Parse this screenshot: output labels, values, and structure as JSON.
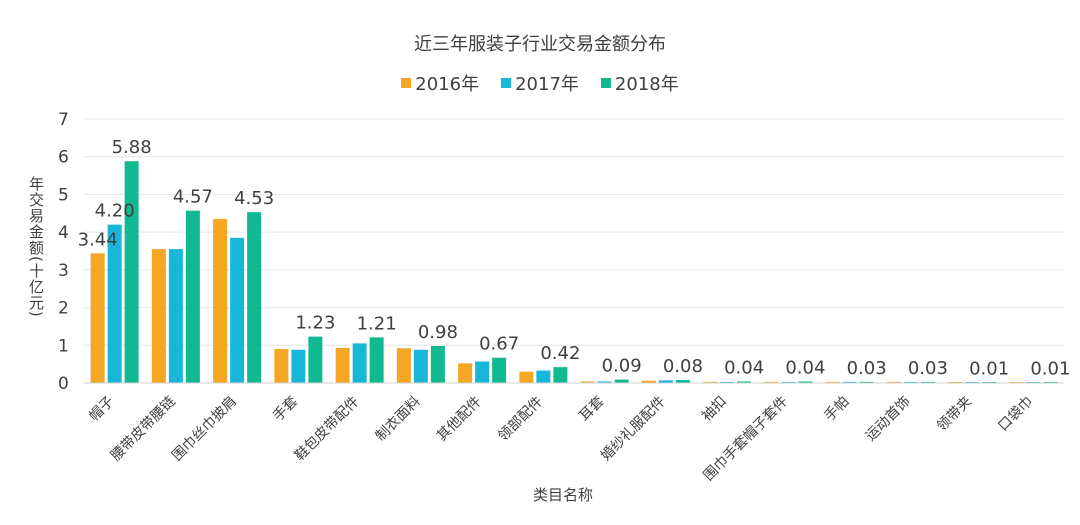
{
  "colors": {
    "series_2016": "#F5A623",
    "series_2017": "#18B7DA",
    "series_2018": "#10B98F",
    "grid": "#e6e6e6",
    "text": "#404040"
  },
  "chart_data": {
    "type": "bar",
    "title": "近三年服装子行业交易金额分布",
    "xlabel": "类目名称",
    "ylabel": "年交易金额(十亿元)",
    "ylim": [
      0,
      7
    ],
    "yticks": [
      "0",
      "1",
      "2",
      "3",
      "4",
      "5",
      "6",
      "7"
    ],
    "grid": true,
    "legend_position": "top",
    "categories": [
      "帽子",
      "腰带皮带腰链",
      "围巾丝巾披肩",
      "手套",
      "鞋包皮带配件",
      "制衣面料",
      "其他配件",
      "领部配件",
      "耳套",
      "婚纱礼服配件",
      "袖扣",
      "围巾手套帽子套件",
      "手帕",
      "运动首饰",
      "领带夹",
      "口袋巾"
    ],
    "series": [
      {
        "name": "2016年",
        "values": [
          3.44,
          3.55,
          4.35,
          0.9,
          0.93,
          0.92,
          0.52,
          0.3,
          0.04,
          0.06,
          0.03,
          0.03,
          0.03,
          0.03,
          0.005,
          0.005
        ]
      },
      {
        "name": "2017年",
        "values": [
          4.2,
          3.55,
          3.85,
          0.88,
          1.05,
          0.88,
          0.57,
          0.33,
          0.04,
          0.07,
          0.02,
          0.02,
          0.03,
          0.02,
          0.005,
          0.005
        ]
      },
      {
        "name": "2018年",
        "values": [
          5.88,
          4.57,
          4.53,
          1.23,
          1.21,
          0.98,
          0.67,
          0.42,
          0.09,
          0.08,
          0.04,
          0.04,
          0.03,
          0.03,
          0.01,
          0.01
        ]
      }
    ],
    "data_labels": [
      {
        "series": 0,
        "index": 0,
        "text": "3.44"
      },
      {
        "series": 1,
        "index": 0,
        "text": "4.20"
      },
      {
        "series": 2,
        "index": 0,
        "text": "5.88"
      },
      {
        "series": 2,
        "index": 1,
        "text": "4.57"
      },
      {
        "series": 2,
        "index": 2,
        "text": "4.53"
      },
      {
        "series": 2,
        "index": 3,
        "text": "1.23"
      },
      {
        "series": 2,
        "index": 4,
        "text": "1.21"
      },
      {
        "series": 2,
        "index": 5,
        "text": "0.98"
      },
      {
        "series": 2,
        "index": 6,
        "text": "0.67"
      },
      {
        "series": 2,
        "index": 7,
        "text": "0.42"
      },
      {
        "series": 2,
        "index": 8,
        "text": "0.09"
      },
      {
        "series": 2,
        "index": 9,
        "text": "0.08"
      },
      {
        "series": 2,
        "index": 10,
        "text": "0.04"
      },
      {
        "series": 2,
        "index": 11,
        "text": "0.04"
      },
      {
        "series": 2,
        "index": 12,
        "text": "0.03"
      },
      {
        "series": 2,
        "index": 13,
        "text": "0.03"
      },
      {
        "series": 2,
        "index": 14,
        "text": "0.01"
      },
      {
        "series": 2,
        "index": 15,
        "text": "0.01"
      }
    ]
  }
}
